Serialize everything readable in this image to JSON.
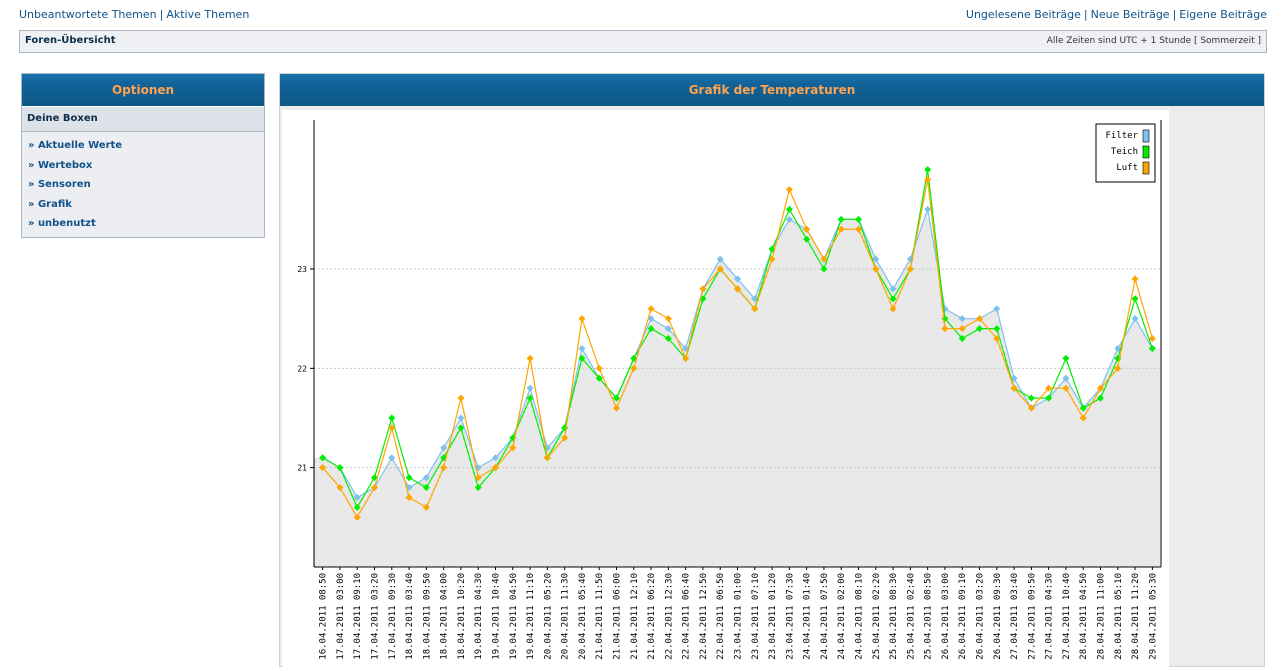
{
  "toplinks": {
    "left": [
      "Unbeantwortete Themen",
      "Aktive Themen"
    ],
    "right": [
      "Ungelesene Beiträge",
      "Neue Beiträge",
      "Eigene Beiträge"
    ]
  },
  "navbar": {
    "forum_index": "Foren-Übersicht",
    "timezone": "Alle Zeiten sind UTC + 1 Stunde [ Sommerzeit ]"
  },
  "sidebar": {
    "title": "Optionen",
    "subtitle": "Deine Boxen",
    "items": [
      "» Aktuelle Werte",
      "» Wertebox",
      "» Sensoren",
      "» Grafik",
      "» unbenutzt"
    ]
  },
  "panel": {
    "title": "Grafik der Temperaturen"
  },
  "colors": {
    "header_bg": "#12639a",
    "header_text": "#ffa34f",
    "link": "#105289",
    "filter": "#7ec0ee",
    "teich": "#00ee00",
    "luft": "#ffa500"
  },
  "chart_data": {
    "type": "line",
    "ylim": [
      20,
      24.5
    ],
    "yticks": [
      21,
      22,
      23
    ],
    "grid": "horizontal dotted",
    "legend_position": "top-right",
    "legend": [
      "Filter",
      "Teich",
      "Luft"
    ],
    "x": [
      "16.04.2011 08:50",
      "17.04.2011 03:00",
      "17.04.2011 09:10",
      "17.04.2011 03:20",
      "17.04.2011 09:30",
      "18.04.2011 03:40",
      "18.04.2011 09:50",
      "18.04.2011 04:00",
      "18.04.2011 10:20",
      "19.04.2011 04:30",
      "19.04.2011 10:40",
      "19.04.2011 04:50",
      "19.04.2011 11:10",
      "20.04.2011 05:20",
      "20.04.2011 11:30",
      "20.04.2011 05:40",
      "21.04.2011 11:50",
      "21.04.2011 06:00",
      "21.04.2011 12:10",
      "21.04.2011 06:20",
      "22.04.2011 12:30",
      "22.04.2011 06:40",
      "22.04.2011 12:50",
      "22.04.2011 06:50",
      "23.04.2011 01:00",
      "23.04.2011 07:10",
      "23.04.2011 01:20",
      "23.04.2011 07:30",
      "24.04.2011 01:40",
      "24.04.2011 07:50",
      "24.04.2011 02:00",
      "24.04.2011 08:10",
      "25.04.2011 02:20",
      "25.04.2011 08:30",
      "25.04.2011 02:40",
      "25.04.2011 08:50",
      "26.04.2011 03:00",
      "26.04.2011 09:10",
      "26.04.2011 03:20",
      "26.04.2011 09:30",
      "27.04.2011 03:40",
      "27.04.2011 09:50",
      "27.04.2011 04:30",
      "27.04.2011 10:40",
      "28.04.2011 04:50",
      "28.04.2011 11:00",
      "28.04.2011 05:10",
      "28.04.2011 11:20",
      "29.04.2011 05:30"
    ],
    "series": [
      {
        "name": "Filter",
        "color": "#7ec0ee",
        "values": [
          21.1,
          21.0,
          20.7,
          20.8,
          21.1,
          20.8,
          20.9,
          21.2,
          21.5,
          21.0,
          21.1,
          21.3,
          21.8,
          21.2,
          21.4,
          22.2,
          21.9,
          21.7,
          22.1,
          22.5,
          22.4,
          22.2,
          22.8,
          23.1,
          22.9,
          22.7,
          23.2,
          23.5,
          23.4,
          23.1,
          23.5,
          23.5,
          23.1,
          22.8,
          23.1,
          23.6,
          22.6,
          22.5,
          22.5,
          22.6,
          21.9,
          21.6,
          21.7,
          21.9,
          21.6,
          21.8,
          22.2,
          22.5,
          22.2
        ]
      },
      {
        "name": "Teich",
        "color": "#00ee00",
        "values": [
          21.1,
          21.0,
          20.6,
          20.9,
          21.5,
          20.9,
          20.8,
          21.1,
          21.4,
          20.8,
          21.0,
          21.3,
          21.7,
          21.1,
          21.4,
          22.1,
          21.9,
          21.7,
          22.1,
          22.4,
          22.3,
          22.1,
          22.7,
          23.0,
          22.8,
          22.6,
          23.2,
          23.6,
          23.3,
          23.0,
          23.5,
          23.5,
          23.0,
          22.7,
          23.0,
          24.0,
          22.5,
          22.3,
          22.4,
          22.4,
          21.8,
          21.7,
          21.7,
          22.1,
          21.6,
          21.7,
          22.1,
          22.7,
          22.2
        ]
      },
      {
        "name": "Luft",
        "color": "#ffa500",
        "values": [
          21.0,
          20.8,
          20.5,
          20.8,
          21.4,
          20.7,
          20.6,
          21.0,
          21.7,
          20.9,
          21.0,
          21.2,
          22.1,
          21.1,
          21.3,
          22.5,
          22.0,
          21.6,
          22.0,
          22.6,
          22.5,
          22.1,
          22.8,
          23.0,
          22.8,
          22.6,
          23.1,
          23.8,
          23.4,
          23.1,
          23.4,
          23.4,
          23.0,
          22.6,
          23.0,
          23.9,
          22.4,
          22.4,
          22.5,
          22.3,
          21.8,
          21.6,
          21.8,
          21.8,
          21.5,
          21.8,
          22.0,
          22.9,
          22.3
        ]
      }
    ]
  }
}
